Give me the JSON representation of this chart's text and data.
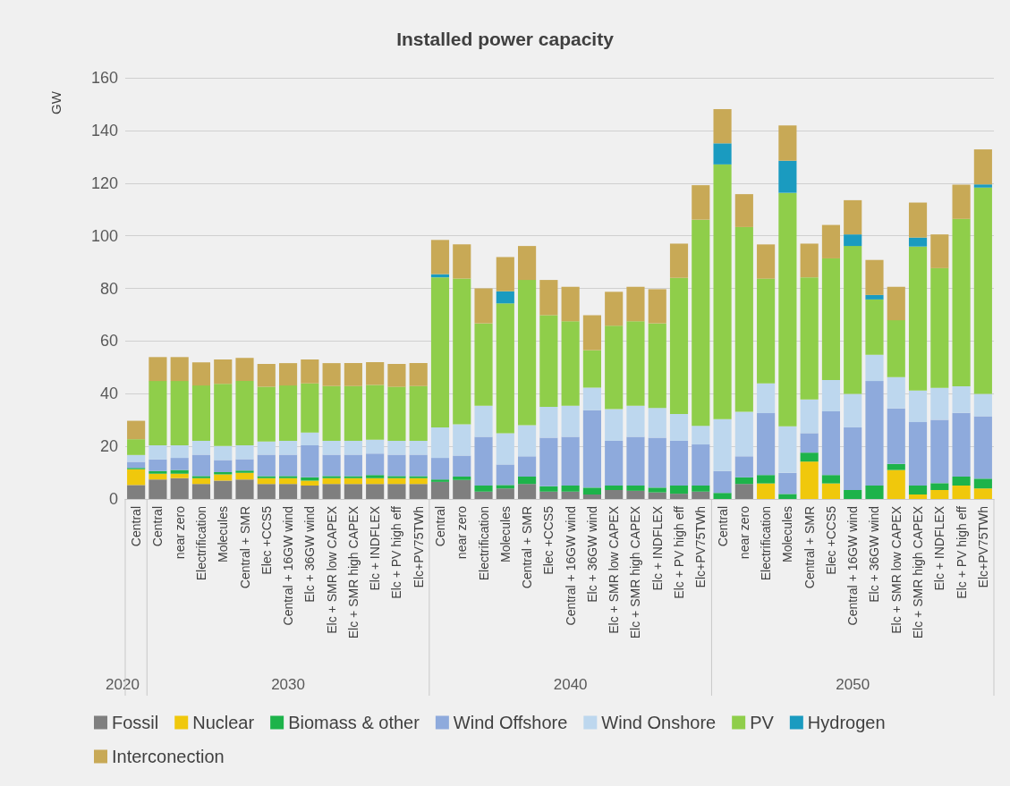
{
  "chart_data": {
    "type": "bar",
    "stacked": true,
    "title": "Installed power capacity",
    "ylabel": "GW",
    "categories": [
      "Central",
      "Central",
      "near zero",
      "Electrification",
      "Molecules",
      "Central + SMR",
      "Elec +CCS5",
      "Central + 16GW wind",
      "Elc + 36GW wind",
      "Elc + SMR low CAPEX",
      "Elc + SMR high CAPEX",
      "Elc + INDFLEX",
      "Elc + PV high eff",
      "Elc+PV75TWh",
      "Central",
      "near zero",
      "Electrification",
      "Molecules",
      "Central + SMR",
      "Elec +CCS5",
      "Central + 16GW wind",
      "Elc + 36GW wind",
      "Elc + SMR low CAPEX",
      "Elc + SMR high CAPEX",
      "Elc + INDFLEX",
      "Elc + PV high eff",
      "Elc+PV75TWh",
      "Central",
      "near zero",
      "Electrification",
      "Molecules",
      "Central + SMR",
      "Elec +CCS5",
      "Central + 16GW wind",
      "Elc + 36GW wind",
      "Elc + SMR low CAPEX",
      "Elc + SMR high CAPEX",
      "Elc + INDFLEX",
      "Elc + PV high eff",
      "Elc+PV75TWh"
    ],
    "annotations": [
      "2020",
      "2030",
      "2040",
      "2050"
    ],
    "series": [
      {
        "name": "Fossil",
        "color": "#7f7f7f",
        "values": [
          5.3,
          7.4,
          7.9,
          5.7,
          7.0,
          7.4,
          5.7,
          5.7,
          5.1,
          5.7,
          5.7,
          5.7,
          5.7,
          5.7,
          6.5,
          7.2,
          2.8,
          4.0,
          5.7,
          2.8,
          2.8,
          1.7,
          3.4,
          3.1,
          2.5,
          2.0,
          2.8,
          null,
          5.7,
          null,
          null,
          null,
          null,
          null,
          null,
          null,
          null,
          null,
          null,
          null
        ]
      },
      {
        "name": "Nuclear",
        "color": "#f0c80c",
        "values": [
          6.0,
          2.2,
          1.7,
          2.2,
          2.3,
          2.5,
          2.2,
          2.2,
          1.9,
          2.2,
          2.2,
          2.2,
          2.2,
          2.2,
          null,
          null,
          null,
          null,
          null,
          null,
          null,
          null,
          null,
          null,
          null,
          null,
          null,
          null,
          null,
          5.9,
          null,
          14.2,
          5.9,
          null,
          null,
          11.0,
          1.7,
          3.4,
          5.1,
          4.0
        ]
      },
      {
        "name": "Biomass & other",
        "color": "#1db34a",
        "values": [
          0.5,
          1.0,
          1.4,
          0.8,
          0.9,
          0.9,
          0.8,
          0.8,
          1.2,
          0.8,
          0.8,
          1.2,
          0.8,
          0.8,
          0.9,
          1.3,
          2.3,
          1.3,
          2.8,
          2.0,
          2.3,
          2.6,
          1.7,
          2.0,
          1.8,
          3.1,
          2.3,
          2.3,
          2.5,
          3.2,
          1.9,
          3.4,
          3.2,
          3.4,
          5.1,
          2.3,
          3.4,
          2.6,
          3.4,
          3.7
        ]
      },
      {
        "name": "Wind Offshore",
        "color": "#8eaadc",
        "values": [
          2.3,
          4.4,
          4.6,
          8.1,
          4.6,
          4.3,
          8.1,
          8.1,
          12.2,
          8.1,
          8.1,
          8.1,
          8.1,
          8.1,
          8.2,
          8.0,
          18.5,
          7.8,
          7.7,
          18.5,
          18.5,
          29.4,
          17.0,
          18.5,
          19.0,
          17.0,
          15.6,
          8.3,
          8.0,
          23.5,
          8.0,
          7.4,
          24.2,
          23.8,
          39.7,
          21.1,
          24.1,
          24.1,
          24.2,
          23.7
        ]
      },
      {
        "name": "Wind Onshore",
        "color": "#bdd7ee",
        "values": [
          2.6,
          5.4,
          4.8,
          5.3,
          5.3,
          5.3,
          5.0,
          5.3,
          4.8,
          5.3,
          5.3,
          5.3,
          5.3,
          5.3,
          11.6,
          11.9,
          11.8,
          11.9,
          11.8,
          11.7,
          11.8,
          8.6,
          12.0,
          11.8,
          11.3,
          10.2,
          7.1,
          19.7,
          16.9,
          11.3,
          17.7,
          12.8,
          11.9,
          12.7,
          10.0,
          11.9,
          12.0,
          12.1,
          10.1,
          8.5
        ]
      },
      {
        "name": "PV",
        "color": "#8fce4a",
        "values": [
          6.0,
          24.4,
          24.4,
          21.0,
          23.6,
          24.4,
          20.8,
          21.0,
          18.7,
          20.8,
          20.8,
          20.8,
          20.5,
          20.8,
          57.0,
          55.3,
          31.3,
          49.3,
          55.2,
          34.8,
          32.1,
          14.2,
          31.7,
          32.1,
          32.1,
          51.7,
          78.3,
          96.8,
          70.2,
          39.8,
          88.7,
          46.4,
          46.2,
          56.2,
          21.0,
          21.6,
          54.7,
          45.5,
          63.6,
          78.4
        ]
      },
      {
        "name": "Hydrogen",
        "color": "#1a9bc0",
        "values": [
          null,
          null,
          null,
          null,
          null,
          null,
          null,
          null,
          null,
          null,
          null,
          null,
          null,
          null,
          1.2,
          null,
          null,
          4.6,
          null,
          null,
          null,
          null,
          null,
          null,
          null,
          null,
          null,
          8.0,
          null,
          null,
          12.2,
          null,
          null,
          4.4,
          1.7,
          null,
          3.4,
          null,
          null,
          1.2
        ]
      },
      {
        "name": "Interconection",
        "color": "#c8a956",
        "values": [
          7.0,
          9.1,
          9.1,
          8.8,
          9.3,
          8.8,
          8.7,
          8.5,
          9.1,
          8.7,
          8.7,
          8.7,
          8.7,
          8.7,
          13.0,
          13.0,
          13.3,
          13.0,
          12.9,
          13.4,
          13.1,
          13.3,
          12.9,
          13.1,
          13.0,
          13.0,
          13.1,
          13.0,
          12.5,
          13.0,
          13.4,
          12.8,
          12.7,
          13.0,
          13.3,
          12.7,
          13.3,
          12.8,
          13.0,
          13.3
        ]
      }
    ],
    "ylim": [
      0,
      160
    ],
    "yticks": [
      0,
      20,
      40,
      60,
      80,
      100,
      120,
      140,
      160
    ],
    "grid": "y",
    "legend": "bottom"
  }
}
